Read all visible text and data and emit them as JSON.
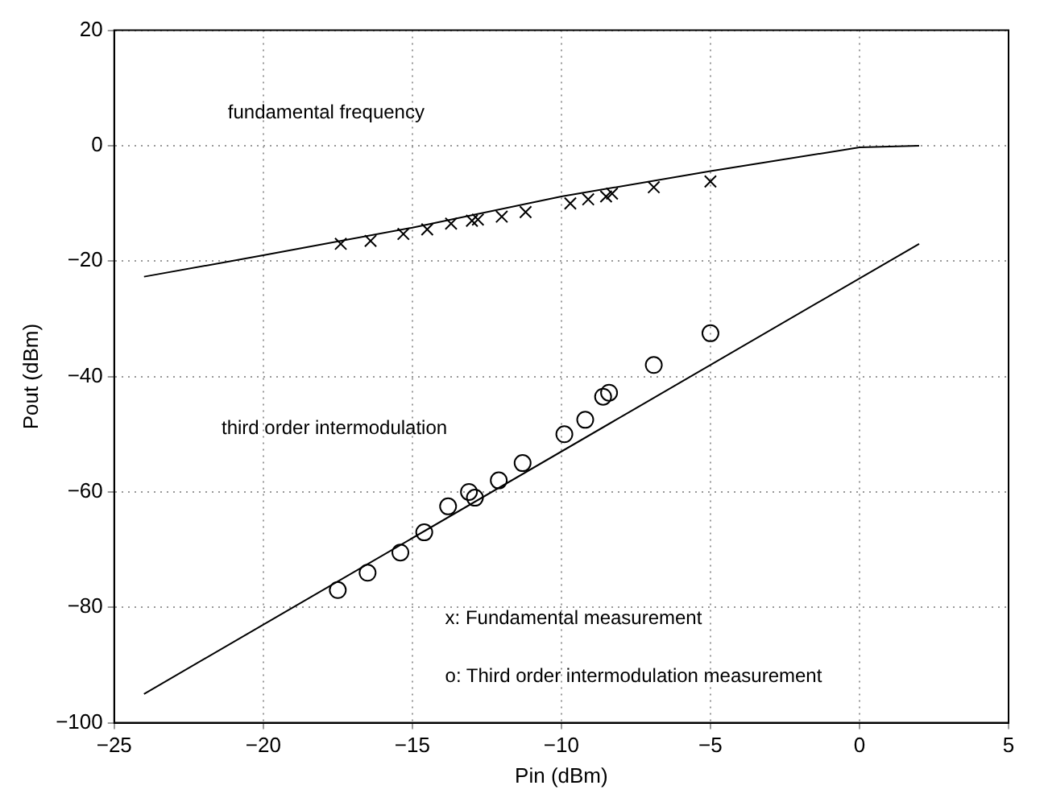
{
  "chart_data": {
    "type": "scatter",
    "xlabel": "Pin (dBm)",
    "ylabel": "Pout (dBm)",
    "xlim": [
      -25,
      5
    ],
    "ylim": [
      -100,
      20
    ],
    "xticks": [
      -25,
      -20,
      -15,
      -10,
      -5,
      0,
      5
    ],
    "yticks": [
      -100,
      -80,
      -60,
      -40,
      -20,
      0,
      20
    ],
    "grid": true,
    "legend": false,
    "annotations": [
      "fundamental frequency",
      "third order intermodulation",
      "x: Fundamental measurement",
      "o: Third order intermodulation measurement"
    ],
    "series": [
      {
        "type": "line",
        "color": "#000000",
        "marker": "none",
        "x": [
          -24,
          -20,
          -15,
          -10,
          -5,
          0,
          2
        ],
        "values": [
          -22.7,
          -19,
          -14.2,
          -8.8,
          -4.4,
          -0.3,
          0
        ]
      },
      {
        "type": "line",
        "color": "#000000",
        "marker": "none",
        "x": [
          -24,
          2
        ],
        "values": [
          -95,
          -17
        ]
      },
      {
        "type": "scatter",
        "color": "#000000",
        "marker": "cross",
        "x": [
          -17.4,
          -16.4,
          -15.3,
          -14.5,
          -13.7,
          -13,
          -12.8,
          -12,
          -11.2,
          -9.7,
          -9.1,
          -8.5,
          -8.3,
          -6.9,
          -5
        ],
        "values": [
          -17,
          -16.5,
          -15.3,
          -14.5,
          -13.5,
          -13,
          -12.8,
          -12.3,
          -11.5,
          -10,
          -9.3,
          -8.8,
          -8.3,
          -7.2,
          -6.2
        ]
      },
      {
        "type": "scatter",
        "color": "#000000",
        "marker": "circle",
        "x": [
          -17.5,
          -16.5,
          -15.4,
          -14.6,
          -13.8,
          -13.1,
          -12.9,
          -12.1,
          -11.3,
          -9.9,
          -9.2,
          -8.6,
          -8.4,
          -6.9,
          -5
        ],
        "values": [
          -77,
          -74,
          -70.5,
          -67,
          -62.5,
          -60,
          -61,
          -58,
          -55,
          -50,
          -47.5,
          -43.5,
          -42.8,
          -38,
          -32.5
        ]
      }
    ]
  }
}
